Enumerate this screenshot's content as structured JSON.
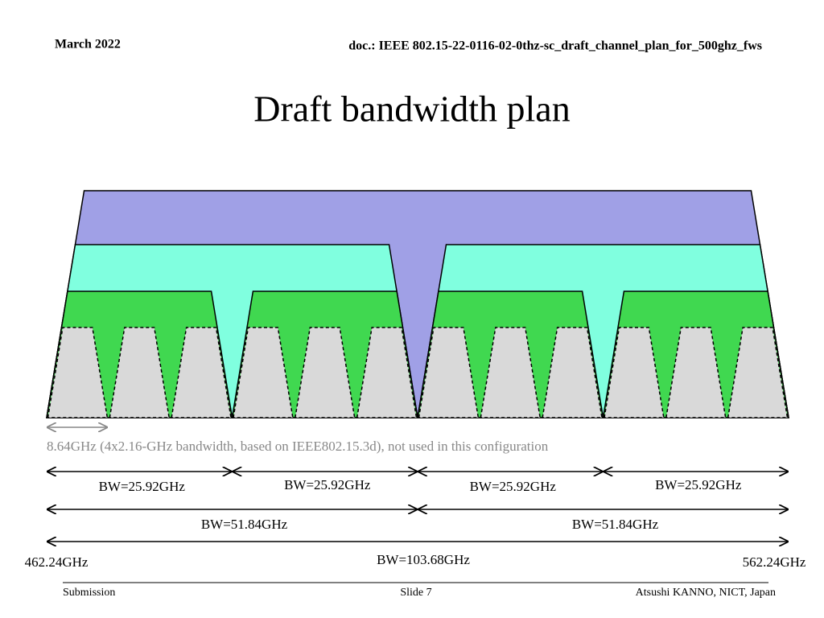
{
  "header": {
    "date": "March 2022",
    "doc": "doc.: IEEE 802.15-22-0116-02-0thz-sc_draft_channel_plan_for_500ghz_fws"
  },
  "title": "Draft bandwidth plan",
  "diagram": {
    "note": "8.64GHz (4x2.16-GHz bandwidth, based on IEEE802.15.3d), not used in this configuration",
    "bw_25": [
      "BW=25.92GHz",
      "BW=25.92GHz",
      "BW=25.92GHz",
      "BW=25.92GHz"
    ],
    "bw_51": [
      "BW=51.84GHz",
      "BW=51.84GHz"
    ],
    "bw_103": "BW=103.68GHz",
    "freq_start": "462.24GHz",
    "freq_end": "562.24GHz"
  },
  "footer": {
    "left": "Submission",
    "center": "Slide 7",
    "right": "Atsushi KANNO, NICT, Japan"
  }
}
